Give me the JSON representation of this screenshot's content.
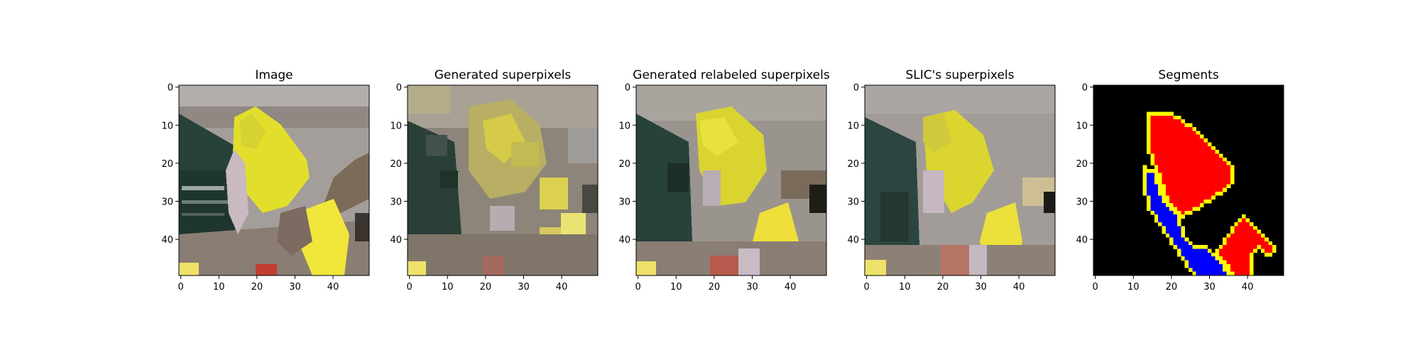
{
  "panels": [
    {
      "title": "Image",
      "kind": "photo"
    },
    {
      "title": "Generated superpixels",
      "kind": "superpixel-coarse"
    },
    {
      "title": "Generated relabeled superpixels",
      "kind": "superpixel-relabeled"
    },
    {
      "title": "SLIC's superpixels",
      "kind": "superpixel-slic"
    },
    {
      "title": "Segments",
      "kind": "segments"
    }
  ],
  "axes": {
    "x_ticks": [
      "0",
      "10",
      "20",
      "30",
      "40"
    ],
    "y_ticks": [
      "0",
      "10",
      "20",
      "30",
      "40"
    ]
  },
  "colors": {
    "background": "#ffffff",
    "segment_background": "#000000",
    "segment_red": "#ff0000",
    "segment_blue": "#0000ff",
    "segment_boundary": "#ffff00",
    "bird_yellow": "#e2df2c",
    "foliage_dark": "#27413b",
    "wall_gray": "#a49e9a"
  }
}
